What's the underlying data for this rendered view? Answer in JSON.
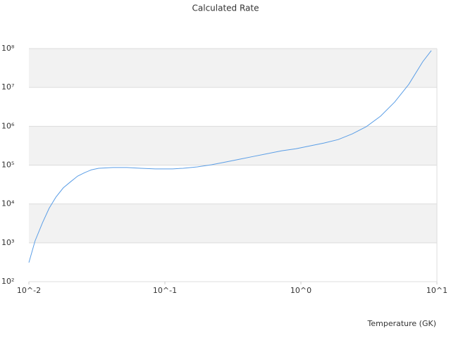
{
  "chart_data": {
    "type": "line",
    "title": "Calculated Rate",
    "x_label": "Temperature (GK)",
    "log_x": true,
    "log_y": true,
    "grid": true,
    "bands": true,
    "xlim": [
      0.01,
      10
    ],
    "ylim": [
      100,
      100000000
    ],
    "xticks": [
      {
        "value": 0.01,
        "label": "10^-2"
      },
      {
        "value": 0.1,
        "label": "10^-1"
      },
      {
        "value": 1,
        "label": "10^0"
      },
      {
        "value": 10,
        "label": "10^1"
      }
    ],
    "yticks": [
      {
        "value": 100,
        "label": "10²"
      },
      {
        "value": 1000,
        "label": "10³"
      },
      {
        "value": 10000,
        "label": "10⁴"
      },
      {
        "value": 100000,
        "label": "10⁵"
      },
      {
        "value": 1000000,
        "label": "10⁶"
      },
      {
        "value": 10000000,
        "label": "10⁷"
      },
      {
        "value": 100000000,
        "label": "10⁸"
      }
    ],
    "x": [
      0.01,
      0.0111,
      0.0126,
      0.0141,
      0.0158,
      0.0179,
      0.0202,
      0.0228,
      0.0257,
      0.0289,
      0.0326,
      0.0414,
      0.0525,
      0.0667,
      0.0851,
      0.114,
      0.136,
      0.173,
      0.22,
      0.279,
      0.354,
      0.45,
      0.57,
      0.724,
      0.92,
      1.17,
      1.48,
      1.88,
      2.39,
      3.03,
      3.85,
      4.89,
      6.21,
      7.87,
      9.1
    ],
    "series": [
      {
        "color": "#5b9ee6",
        "values": [
          310,
          1120,
          3300,
          7800,
          15000,
          26000,
          37000,
          52000,
          64000,
          76000,
          83000,
          87000,
          87000,
          83000,
          80000,
          80000,
          83000,
          90000,
          102000,
          120000,
          142000,
          168000,
          198000,
          234000,
          264000,
          313000,
          370000,
          455000,
          640000,
          980000,
          1820000,
          4200000,
          12000000,
          46000000,
          89000000
        ]
      }
    ]
  }
}
